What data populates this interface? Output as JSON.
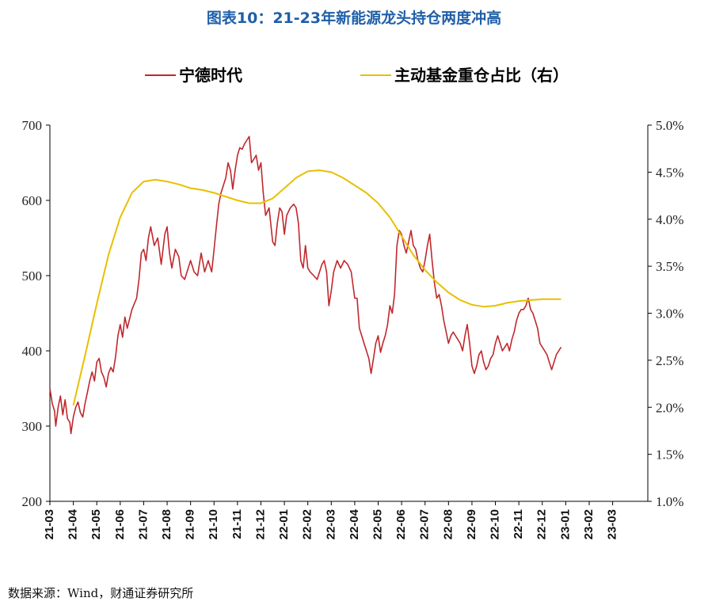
{
  "title": "图表10：21-23年新能源龙头持仓两度冲高",
  "source": "数据来源：Wind，财通证券研究所",
  "chart_data": {
    "type": "line",
    "title": "图表10：21-23年新能源龙头持仓两度冲高",
    "legend_position": "top",
    "y_left": {
      "range": [
        200,
        700
      ],
      "ticks": [
        "200",
        "300",
        "400",
        "500",
        "600",
        "700"
      ]
    },
    "y_right": {
      "range": [
        1.0,
        5.0
      ],
      "ticks": [
        "1.0%",
        "1.5%",
        "2.0%",
        "2.5%",
        "3.0%",
        "3.5%",
        "4.0%",
        "4.5%",
        "5.0%"
      ]
    },
    "x": {
      "range": [
        0,
        25.5
      ],
      "tick_labels": [
        "21-03",
        "21-04",
        "21-05",
        "21-06",
        "21-07",
        "21-08",
        "21-09",
        "21-10",
        "21-11",
        "21-12",
        "22-01",
        "22-02",
        "22-03",
        "22-04",
        "22-05",
        "22-06",
        "22-07",
        "22-08",
        "22-09",
        "22-10",
        "22-11",
        "22-12",
        "23-01",
        "23-02",
        "23-03"
      ]
    },
    "series": [
      {
        "name": "宁德时代",
        "axis": "left",
        "color": "#c0282d",
        "points": [
          [
            0.0,
            350
          ],
          [
            0.1,
            330
          ],
          [
            0.2,
            320
          ],
          [
            0.25,
            300
          ],
          [
            0.35,
            325
          ],
          [
            0.45,
            340
          ],
          [
            0.55,
            315
          ],
          [
            0.65,
            335
          ],
          [
            0.75,
            310
          ],
          [
            0.85,
            305
          ],
          [
            0.9,
            290
          ],
          [
            1.0,
            312
          ],
          [
            1.1,
            325
          ],
          [
            1.2,
            332
          ],
          [
            1.3,
            318
          ],
          [
            1.4,
            312
          ],
          [
            1.5,
            330
          ],
          [
            1.6,
            345
          ],
          [
            1.7,
            360
          ],
          [
            1.8,
            372
          ],
          [
            1.9,
            360
          ],
          [
            2.0,
            385
          ],
          [
            2.1,
            390
          ],
          [
            2.2,
            372
          ],
          [
            2.3,
            365
          ],
          [
            2.4,
            352
          ],
          [
            2.5,
            370
          ],
          [
            2.6,
            378
          ],
          [
            2.7,
            372
          ],
          [
            2.8,
            392
          ],
          [
            2.9,
            420
          ],
          [
            3.0,
            435
          ],
          [
            3.1,
            418
          ],
          [
            3.2,
            445
          ],
          [
            3.3,
            430
          ],
          [
            3.5,
            455
          ],
          [
            3.7,
            470
          ],
          [
            3.8,
            495
          ],
          [
            3.9,
            530
          ],
          [
            4.0,
            535
          ],
          [
            4.1,
            520
          ],
          [
            4.2,
            550
          ],
          [
            4.3,
            565
          ],
          [
            4.45,
            540
          ],
          [
            4.6,
            550
          ],
          [
            4.75,
            515
          ],
          [
            4.9,
            555
          ],
          [
            5.0,
            565
          ],
          [
            5.1,
            530
          ],
          [
            5.2,
            510
          ],
          [
            5.35,
            535
          ],
          [
            5.5,
            525
          ],
          [
            5.6,
            500
          ],
          [
            5.75,
            495
          ],
          [
            5.9,
            510
          ],
          [
            6.0,
            520
          ],
          [
            6.15,
            505
          ],
          [
            6.3,
            500
          ],
          [
            6.45,
            530
          ],
          [
            6.6,
            505
          ],
          [
            6.75,
            520
          ],
          [
            6.9,
            505
          ],
          [
            7.0,
            535
          ],
          [
            7.1,
            565
          ],
          [
            7.2,
            595
          ],
          [
            7.3,
            610
          ],
          [
            7.4,
            620
          ],
          [
            7.5,
            630
          ],
          [
            7.6,
            650
          ],
          [
            7.7,
            640
          ],
          [
            7.8,
            615
          ],
          [
            7.9,
            640
          ],
          [
            8.0,
            660
          ],
          [
            8.1,
            670
          ],
          [
            8.2,
            668
          ],
          [
            8.3,
            675
          ],
          [
            8.4,
            680
          ],
          [
            8.5,
            685
          ],
          [
            8.6,
            650
          ],
          [
            8.7,
            655
          ],
          [
            8.8,
            660
          ],
          [
            8.9,
            640
          ],
          [
            9.0,
            650
          ],
          [
            9.1,
            610
          ],
          [
            9.2,
            580
          ],
          [
            9.35,
            590
          ],
          [
            9.5,
            545
          ],
          [
            9.6,
            540
          ],
          [
            9.7,
            570
          ],
          [
            9.8,
            590
          ],
          [
            9.9,
            585
          ],
          [
            10.0,
            555
          ],
          [
            10.1,
            580
          ],
          [
            10.25,
            590
          ],
          [
            10.4,
            595
          ],
          [
            10.5,
            590
          ],
          [
            10.6,
            570
          ],
          [
            10.7,
            520
          ],
          [
            10.8,
            510
          ],
          [
            10.9,
            540
          ],
          [
            11.0,
            510
          ],
          [
            11.1,
            505
          ],
          [
            11.25,
            500
          ],
          [
            11.4,
            495
          ],
          [
            11.6,
            515
          ],
          [
            11.7,
            520
          ],
          [
            11.8,
            505
          ],
          [
            11.9,
            460
          ],
          [
            12.0,
            480
          ],
          [
            12.1,
            505
          ],
          [
            12.25,
            520
          ],
          [
            12.4,
            510
          ],
          [
            12.55,
            520
          ],
          [
            12.7,
            515
          ],
          [
            12.85,
            505
          ],
          [
            13.0,
            470
          ],
          [
            13.1,
            470
          ],
          [
            13.2,
            430
          ],
          [
            13.3,
            420
          ],
          [
            13.4,
            410
          ],
          [
            13.5,
            400
          ],
          [
            13.6,
            390
          ],
          [
            13.7,
            370
          ],
          [
            13.8,
            390
          ],
          [
            13.9,
            410
          ],
          [
            14.0,
            420
          ],
          [
            14.1,
            398
          ],
          [
            14.2,
            410
          ],
          [
            14.3,
            420
          ],
          [
            14.4,
            435
          ],
          [
            14.5,
            460
          ],
          [
            14.6,
            450
          ],
          [
            14.7,
            475
          ],
          [
            14.8,
            540
          ],
          [
            14.9,
            560
          ],
          [
            15.0,
            555
          ],
          [
            15.1,
            540
          ],
          [
            15.2,
            530
          ],
          [
            15.3,
            545
          ],
          [
            15.4,
            560
          ],
          [
            15.5,
            540
          ],
          [
            15.6,
            535
          ],
          [
            15.7,
            520
          ],
          [
            15.8,
            510
          ],
          [
            15.9,
            505
          ],
          [
            16.0,
            520
          ],
          [
            16.1,
            540
          ],
          [
            16.2,
            555
          ],
          [
            16.3,
            520
          ],
          [
            16.4,
            490
          ],
          [
            16.5,
            470
          ],
          [
            16.6,
            475
          ],
          [
            16.7,
            460
          ],
          [
            16.8,
            440
          ],
          [
            16.9,
            425
          ],
          [
            17.0,
            410
          ],
          [
            17.1,
            420
          ],
          [
            17.2,
            425
          ],
          [
            17.3,
            420
          ],
          [
            17.4,
            415
          ],
          [
            17.5,
            410
          ],
          [
            17.6,
            400
          ],
          [
            17.7,
            420
          ],
          [
            17.8,
            435
          ],
          [
            17.9,
            410
          ],
          [
            18.0,
            380
          ],
          [
            18.1,
            370
          ],
          [
            18.2,
            380
          ],
          [
            18.3,
            395
          ],
          [
            18.4,
            400
          ],
          [
            18.5,
            385
          ],
          [
            18.6,
            375
          ],
          [
            18.7,
            380
          ],
          [
            18.8,
            390
          ],
          [
            18.9,
            395
          ],
          [
            19.0,
            410
          ],
          [
            19.1,
            420
          ],
          [
            19.2,
            410
          ],
          [
            19.3,
            400
          ],
          [
            19.4,
            405
          ],
          [
            19.5,
            410
          ],
          [
            19.6,
            400
          ],
          [
            19.7,
            415
          ],
          [
            19.8,
            425
          ],
          [
            19.9,
            440
          ],
          [
            20.0,
            450
          ],
          [
            20.1,
            455
          ],
          [
            20.2,
            455
          ],
          [
            20.3,
            460
          ],
          [
            20.4,
            470
          ],
          [
            20.5,
            455
          ],
          [
            20.6,
            450
          ],
          [
            20.7,
            440
          ],
          [
            20.8,
            430
          ],
          [
            20.9,
            410
          ],
          [
            21.0,
            405
          ],
          [
            21.1,
            400
          ],
          [
            21.2,
            395
          ],
          [
            21.3,
            385
          ],
          [
            21.4,
            375
          ],
          [
            21.5,
            385
          ],
          [
            21.6,
            395
          ],
          [
            21.7,
            400
          ],
          [
            21.8,
            405
          ]
        ]
      },
      {
        "name": "主动基金重仓占比（右）",
        "axis": "right",
        "color": "#e8c000",
        "points": [
          [
            1.0,
            2.02
          ],
          [
            1.5,
            2.55
          ],
          [
            2.0,
            3.1
          ],
          [
            2.5,
            3.62
          ],
          [
            3.0,
            4.02
          ],
          [
            3.5,
            4.28
          ],
          [
            4.0,
            4.4
          ],
          [
            4.5,
            4.42
          ],
          [
            5.0,
            4.4
          ],
          [
            5.5,
            4.37
          ],
          [
            6.0,
            4.33
          ],
          [
            6.5,
            4.31
          ],
          [
            7.0,
            4.28
          ],
          [
            7.5,
            4.24
          ],
          [
            8.0,
            4.2
          ],
          [
            8.5,
            4.17
          ],
          [
            9.0,
            4.17
          ],
          [
            9.5,
            4.22
          ],
          [
            10.0,
            4.33
          ],
          [
            10.5,
            4.44
          ],
          [
            11.0,
            4.51
          ],
          [
            11.5,
            4.52
          ],
          [
            12.0,
            4.5
          ],
          [
            12.5,
            4.44
          ],
          [
            13.0,
            4.36
          ],
          [
            13.5,
            4.28
          ],
          [
            14.0,
            4.17
          ],
          [
            14.5,
            4.02
          ],
          [
            15.0,
            3.82
          ],
          [
            15.5,
            3.62
          ],
          [
            16.0,
            3.46
          ],
          [
            16.5,
            3.33
          ],
          [
            17.0,
            3.22
          ],
          [
            17.5,
            3.14
          ],
          [
            18.0,
            3.09
          ],
          [
            18.5,
            3.07
          ],
          [
            19.0,
            3.08
          ],
          [
            19.5,
            3.11
          ],
          [
            20.0,
            3.13
          ],
          [
            20.5,
            3.14
          ],
          [
            21.0,
            3.15
          ],
          [
            21.8,
            3.15
          ]
        ]
      }
    ]
  }
}
